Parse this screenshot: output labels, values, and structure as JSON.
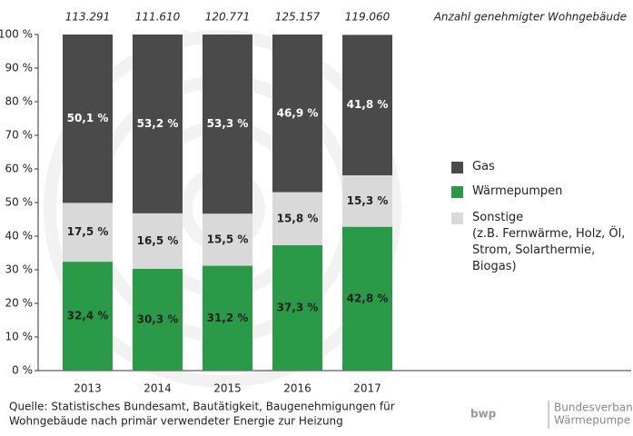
{
  "chart_data": {
    "type": "stacked_bar",
    "categories": [
      "2013",
      "2014",
      "2015",
      "2016",
      "2017"
    ],
    "series": [
      {
        "name": "Wärmepumpen",
        "color": "#2a9a48",
        "values": [
          32.4,
          30.3,
          31.2,
          37.3,
          42.8
        ],
        "value_labels": [
          "32,4 %",
          "30,3 %",
          "31,2 %",
          "37,3 %",
          "42,8 %"
        ]
      },
      {
        "name": "Sonstige",
        "note": "(z.B. Fernwärme, Holz, Öl, Strom, Solarthermie, Biogas)",
        "color": "#d9d9d9",
        "values": [
          17.5,
          16.5,
          15.5,
          15.8,
          15.3
        ],
        "value_labels": [
          "17,5 %",
          "16,5 %",
          "15,5 %",
          "15,8 %",
          "15,3 %"
        ]
      },
      {
        "name": "Gas",
        "color": "#4a4a4a",
        "values": [
          50.1,
          53.2,
          53.3,
          46.9,
          41.8
        ],
        "value_labels": [
          "50,1 %",
          "53,2 %",
          "53,3 %",
          "46,9 %",
          "41,8 %"
        ]
      }
    ],
    "totals": {
      "label": "Anzahl genehmigter Wohngebäude",
      "values": [
        113291,
        111610,
        120771,
        125157,
        119060
      ],
      "value_labels": [
        "113.291",
        "111.610",
        "120.771",
        "125.157",
        "119.060"
      ]
    },
    "ylim": [
      0,
      100
    ],
    "yticks": [
      {
        "value": 0,
        "label": "0 %"
      },
      {
        "value": 10,
        "label": "10 %"
      },
      {
        "value": 20,
        "label": "20 %"
      },
      {
        "value": 30,
        "label": "30 %"
      },
      {
        "value": 40,
        "label": "40 %"
      },
      {
        "value": 50,
        "label": "50 %"
      },
      {
        "value": 60,
        "label": "60 %"
      },
      {
        "value": 70,
        "label": "70 %"
      },
      {
        "value": 80,
        "label": "80 %"
      },
      {
        "value": 90,
        "label": "90 %"
      },
      {
        "value": 100,
        "label": "100 %"
      }
    ],
    "legend": "right"
  },
  "source": [
    "Quelle: Statistisches Bundesamt, Bautätigkeit, Baugenehmigungen für",
    "Wohngebäude nach primär verwendeter Energie zur Heizung"
  ],
  "logo": {
    "mark": "bwp",
    "lines": [
      "Bundesverband",
      "Wärmepumpe e.V."
    ]
  }
}
